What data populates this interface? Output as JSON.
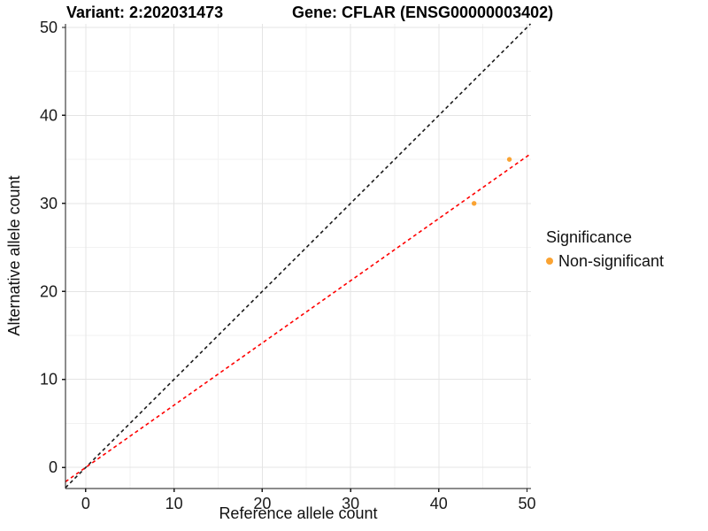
{
  "chart_data": {
    "type": "scatter",
    "title_left": "Variant: 2:202031473",
    "title_right": "Gene: CFLAR (ENSG00000003402)",
    "xlabel": "Reference allele count",
    "ylabel": "Alternative allele count",
    "xlim": [
      -2.3,
      50.45
    ],
    "ylim": [
      -2.4,
      50.4
    ],
    "xticks": [
      0,
      10,
      20,
      30,
      40,
      50
    ],
    "yticks": [
      0,
      10,
      20,
      30,
      40,
      50
    ],
    "minor_xticks": [
      5,
      15,
      25,
      35,
      45
    ],
    "minor_yticks": [
      5,
      15,
      25,
      35,
      45
    ],
    "grid": true,
    "series": [
      {
        "name": "Non-significant",
        "color": "#FAA332",
        "points": [
          {
            "x": 44,
            "y": 30
          },
          {
            "x": 48,
            "y": 35
          }
        ]
      }
    ],
    "lines": [
      {
        "name": "identity-line",
        "slope": 1.0,
        "intercept": 0,
        "color": "#1A1A1A",
        "style": "dashed"
      },
      {
        "name": "ratio-fit-line",
        "slope": 0.707,
        "intercept": 0,
        "color": "#FF0000",
        "style": "dashed"
      }
    ],
    "legend": {
      "title": "Significance",
      "position": "right",
      "entries": [
        {
          "label": "Non-significant",
          "color": "#FAA332"
        }
      ]
    },
    "style": {
      "grid_major_color": "#E4E4E4",
      "grid_minor_color": "#F2F2F2",
      "axis_color": "#1A1A1A",
      "tick_label_color": "#1A1A1A",
      "tick_label_size": 18
    }
  }
}
